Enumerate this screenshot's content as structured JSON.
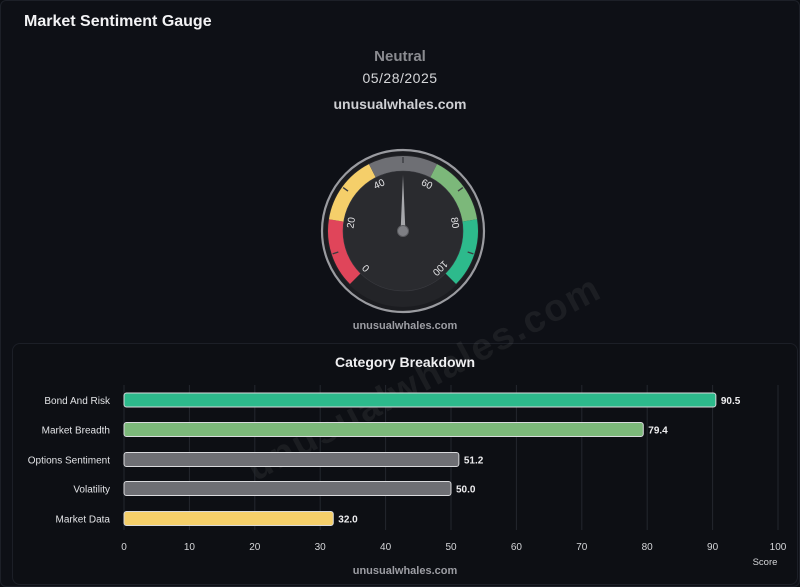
{
  "page_title": "Market Sentiment Gauge",
  "sentiment": {
    "label": "Neutral",
    "date": "05/28/2025",
    "site": "unusualwhales.com"
  },
  "gauge": {
    "value": 50.0,
    "ticks": [
      "0",
      "20",
      "40",
      "60",
      "80",
      "100"
    ],
    "zones": [
      {
        "from": 0,
        "to": 20,
        "color": "#e0455a"
      },
      {
        "from": 20,
        "to": 40,
        "color": "#f5cf6a"
      },
      {
        "from": 40,
        "to": 60,
        "color": "#6e6f74"
      },
      {
        "from": 60,
        "to": 80,
        "color": "#7cb87a"
      },
      {
        "from": 80,
        "to": 100,
        "color": "#2dba8c"
      }
    ],
    "watermark": "unusualwhales.com"
  },
  "breakdown": {
    "title": "Category Breakdown",
    "watermark": "unusualwhales.com",
    "site": "unusualwhales.com"
  },
  "chart_data": {
    "type": "bar",
    "orientation": "horizontal",
    "title": "Category Breakdown",
    "categories": [
      "Bond And Risk",
      "Market Breadth",
      "Options Sentiment",
      "Volatility",
      "Market Data"
    ],
    "values": [
      90.5,
      79.4,
      51.2,
      50.0,
      32.0
    ],
    "value_labels": [
      "90.5",
      "79.4",
      "51.2",
      "50.0",
      "32.0"
    ],
    "colors": [
      "#2dba8c",
      "#7cb87a",
      "#6e6f74",
      "#6e6f74",
      "#f5cf6a"
    ],
    "xlabel": "Score",
    "ylabel": "",
    "xlim": [
      0,
      100
    ],
    "xticks": [
      "0",
      "10",
      "20",
      "30",
      "40",
      "50",
      "60",
      "70",
      "80",
      "90",
      "100"
    ],
    "grid": true
  }
}
